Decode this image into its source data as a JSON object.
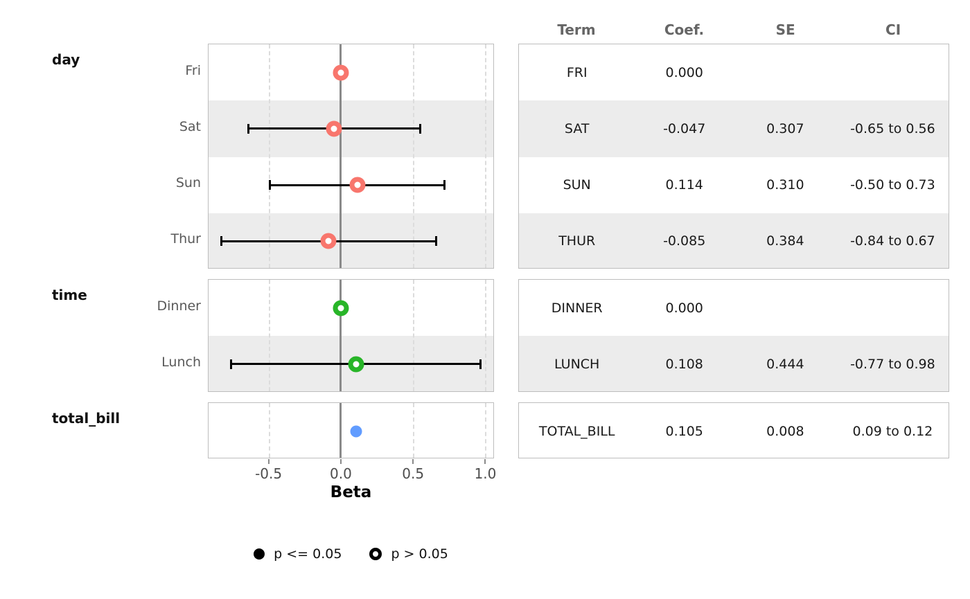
{
  "table": {
    "headers": [
      "Term",
      "Coef.",
      "SE",
      "CI"
    ]
  },
  "colors": {
    "day": "#f8766d",
    "time": "#28b528",
    "total_bill": "#619cff",
    "band": "#ececec",
    "panel_border": "#bdbdbd",
    "zero_line": "#8a8a8a",
    "grid_dashed": "#dcdcdc",
    "error_bar": "#000000",
    "header_text": "#666666",
    "row_label_text": "#595959",
    "tick_label_text": "#4d4d4d"
  },
  "chart_data": {
    "type": "scatter",
    "variant": "forest-coefficient-plot",
    "xlabel": "Beta",
    "xlim": [
      -0.92,
      1.06
    ],
    "xticks": [
      -0.5,
      0.0,
      0.5,
      1.0
    ],
    "xtick_labels": [
      "-0.5",
      "0.0",
      "0.5",
      "1.0"
    ],
    "reference_line_x": 0,
    "grid": "dashed-vertical",
    "legend_position": "bottom",
    "legend": [
      {
        "marker": "filled",
        "label": "p <= 0.05"
      },
      {
        "marker": "open",
        "label": "p > 0.05"
      }
    ],
    "groups": [
      {
        "key": "day",
        "label": "day",
        "color": "#f8766d",
        "rows": [
          {
            "label": "Fri",
            "term": "FRI",
            "beta": 0.0,
            "ci_low": null,
            "ci_high": null,
            "p_significant": false,
            "coef": "0.000",
            "se": "",
            "ci": ""
          },
          {
            "label": "Sat",
            "term": "SAT",
            "beta": -0.047,
            "ci_low": -0.65,
            "ci_high": 0.56,
            "p_significant": false,
            "coef": "-0.047",
            "se": "0.307",
            "ci": "-0.65 to 0.56"
          },
          {
            "label": "Sun",
            "term": "SUN",
            "beta": 0.114,
            "ci_low": -0.5,
            "ci_high": 0.73,
            "p_significant": false,
            "coef": "0.114",
            "se": "0.310",
            "ci": "-0.50 to 0.73"
          },
          {
            "label": "Thur",
            "term": "THUR",
            "beta": -0.085,
            "ci_low": -0.84,
            "ci_high": 0.67,
            "p_significant": false,
            "coef": "-0.085",
            "se": "0.384",
            "ci": "-0.84 to 0.67"
          }
        ]
      },
      {
        "key": "time",
        "label": "time",
        "color": "#28b528",
        "rows": [
          {
            "label": "Dinner",
            "term": "DINNER",
            "beta": 0.0,
            "ci_low": null,
            "ci_high": null,
            "p_significant": false,
            "coef": "0.000",
            "se": "",
            "ci": ""
          },
          {
            "label": "Lunch",
            "term": "LUNCH",
            "beta": 0.108,
            "ci_low": -0.77,
            "ci_high": 0.98,
            "p_significant": false,
            "coef": "0.108",
            "se": "0.444",
            "ci": "-0.77 to 0.98"
          }
        ]
      },
      {
        "key": "total_bill",
        "label": "total_bill",
        "color": "#619cff",
        "rows": [
          {
            "label": "",
            "term": "TOTAL_BILL",
            "beta": 0.105,
            "ci_low": 0.09,
            "ci_high": 0.12,
            "p_significant": true,
            "coef": "0.105",
            "se": "0.008",
            "ci": "0.09 to 0.12"
          }
        ]
      }
    ]
  }
}
